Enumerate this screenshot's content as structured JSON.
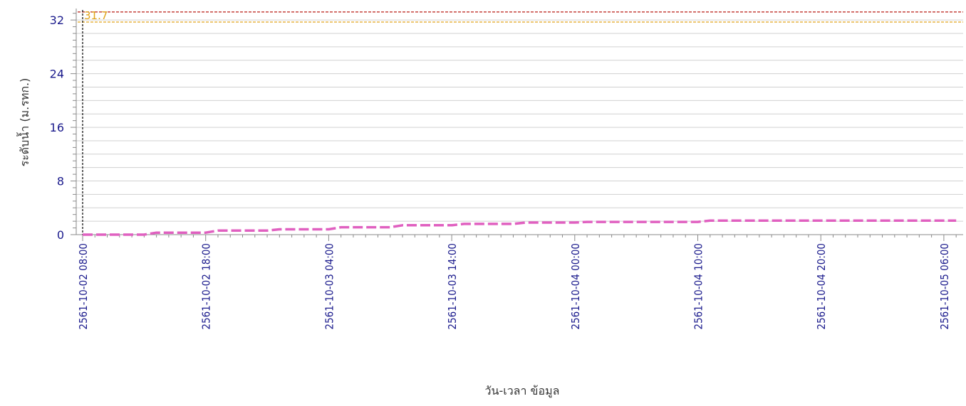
{
  "chart_data": {
    "type": "line",
    "xlabel": "วัน-เวลา ข้อมูล",
    "ylabel": "ระดับน้ำ (ม.รทก.)",
    "ylim": [
      0,
      33.5
    ],
    "y_ticks": [
      "0",
      "8",
      "16",
      "24",
      "32"
    ],
    "x_tick_labels": [
      "2561-10-02 08:00",
      "2561-10-02 18:00",
      "2561-10-03 04:00",
      "2561-10-03 14:00",
      "2561-10-04 00:00",
      "2561-10-04 10:00",
      "2561-10-04 20:00",
      "2561-10-05 06:00"
    ],
    "grid": true,
    "colors": {
      "series": "#e060c0",
      "upper_threshold": "#c0302a",
      "lower_threshold": "#e0a31a",
      "tick_text": "#1a1a8c",
      "gridline": "#d0d0d0"
    },
    "thresholds": [
      {
        "value": 33.2,
        "style": "dashed",
        "color": "#c0302a"
      },
      {
        "value": 31.7,
        "label": "31.7",
        "style": "dashed",
        "color": "#e0a31a"
      }
    ],
    "series": [
      {
        "values_hours_from_start": [
          0,
          5,
          6,
          10,
          11,
          15,
          16,
          20,
          21,
          25,
          26,
          30,
          31,
          35,
          36,
          40,
          41,
          45,
          46,
          50,
          51,
          55,
          56,
          60,
          61,
          65,
          66,
          71
        ],
        "values": [
          0.0,
          0.0,
          0.3,
          0.3,
          0.6,
          0.6,
          0.8,
          0.8,
          1.1,
          1.1,
          1.4,
          1.4,
          1.6,
          1.6,
          1.8,
          1.8,
          1.9,
          1.9,
          1.9,
          1.9,
          2.1,
          2.1,
          2.1,
          2.1,
          2.1,
          2.1,
          2.1,
          2.1
        ]
      }
    ]
  }
}
